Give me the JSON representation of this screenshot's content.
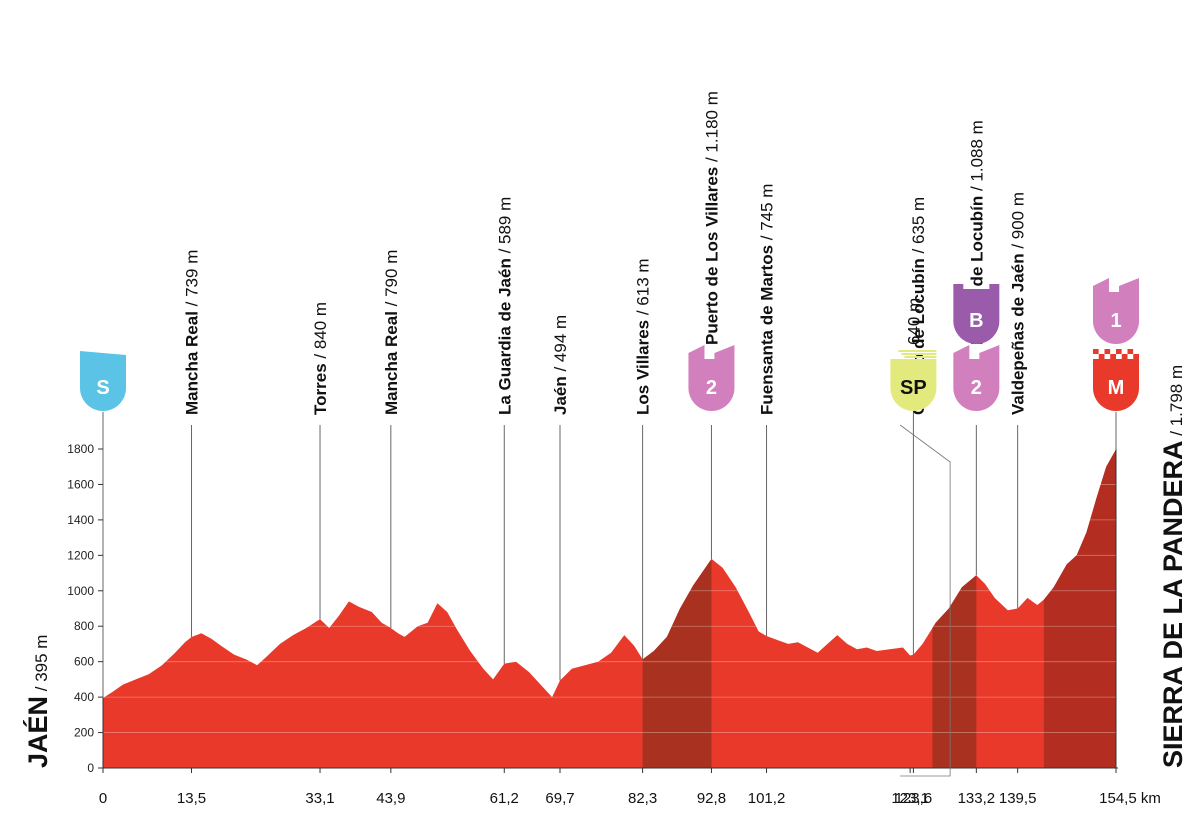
{
  "colors": {
    "profile_main": "#e8392a",
    "profile_climb": "#a8321f",
    "profile_final": "#b32e20",
    "axis": "#333333",
    "start_icon": "#5bc4e6",
    "cat2_icon": "#d27fbd",
    "catB_icon": "#9a5bab",
    "sprint_icon": "#e3ea7d",
    "finish_icon": "#e8392a",
    "cat1_icon": "#d27fbd"
  },
  "start_label": {
    "name": "JAÉN",
    "altitude": " / 395 m"
  },
  "finish_label": {
    "name": "SIERRA DE LA PANDERA",
    "altitude": " / 1.798 m"
  },
  "km_unit": "km",
  "chart_data": {
    "type": "area",
    "title": "",
    "xlabel": "km",
    "ylabel": "",
    "xlim": [
      0,
      154.5
    ],
    "ylim": [
      0,
      1900
    ],
    "yticks": [
      0,
      200,
      400,
      600,
      800,
      1000,
      1200,
      1400,
      1600,
      1800
    ],
    "xticks": [
      {
        "km": 0,
        "label": "0"
      },
      {
        "km": 13.5,
        "label": "13,5"
      },
      {
        "km": 33.1,
        "label": "33,1"
      },
      {
        "km": 43.9,
        "label": "43,9"
      },
      {
        "km": 61.2,
        "label": "61,2"
      },
      {
        "km": 69.7,
        "label": "69,7"
      },
      {
        "km": 82.3,
        "label": "82,3"
      },
      {
        "km": 92.8,
        "label": "92,8"
      },
      {
        "km": 101.2,
        "label": "101,2"
      },
      {
        "km": 123.1,
        "label": "123,1"
      },
      {
        "km": 123.6,
        "label": "123,6"
      },
      {
        "km": 133.2,
        "label": "133,2"
      },
      {
        "km": 139.5,
        "label": "139,5"
      },
      {
        "km": 154.5,
        "label": "154,5 km"
      }
    ],
    "climb_sections": [
      {
        "from": 82.3,
        "to": 92.8
      },
      {
        "from": 126.5,
        "to": 133.2
      },
      {
        "from": 143.5,
        "to": 154.5
      }
    ],
    "profile": [
      [
        0,
        395
      ],
      [
        1.5,
        430
      ],
      [
        3,
        470
      ],
      [
        5,
        500
      ],
      [
        7,
        530
      ],
      [
        9,
        580
      ],
      [
        11,
        650
      ],
      [
        12.5,
        710
      ],
      [
        13.5,
        739
      ],
      [
        15,
        760
      ],
      [
        16.5,
        730
      ],
      [
        18,
        690
      ],
      [
        20,
        640
      ],
      [
        22,
        610
      ],
      [
        23.5,
        580
      ],
      [
        25,
        630
      ],
      [
        27,
        700
      ],
      [
        29,
        750
      ],
      [
        31,
        790
      ],
      [
        33.1,
        840
      ],
      [
        34.5,
        790
      ],
      [
        36,
        860
      ],
      [
        37.5,
        940
      ],
      [
        39,
        910
      ],
      [
        41,
        880
      ],
      [
        42.5,
        820
      ],
      [
        43.9,
        790
      ],
      [
        45,
        760
      ],
      [
        46,
        740
      ],
      [
        48,
        800
      ],
      [
        49.5,
        820
      ],
      [
        51,
        930
      ],
      [
        52.5,
        880
      ],
      [
        54,
        780
      ],
      [
        56,
        660
      ],
      [
        58,
        560
      ],
      [
        59.5,
        500
      ],
      [
        61.2,
        589
      ],
      [
        63,
        600
      ],
      [
        65,
        540
      ],
      [
        67,
        460
      ],
      [
        68.5,
        400
      ],
      [
        69.7,
        494
      ],
      [
        71.5,
        560
      ],
      [
        73.5,
        580
      ],
      [
        75.5,
        600
      ],
      [
        77.5,
        650
      ],
      [
        79.5,
        750
      ],
      [
        81,
        690
      ],
      [
        82.3,
        613
      ],
      [
        84,
        660
      ],
      [
        86,
        740
      ],
      [
        88,
        900
      ],
      [
        90,
        1030
      ],
      [
        92.8,
        1180
      ],
      [
        94.5,
        1130
      ],
      [
        96.5,
        1020
      ],
      [
        98.5,
        880
      ],
      [
        100,
        770
      ],
      [
        101.2,
        745
      ],
      [
        103,
        720
      ],
      [
        104.5,
        700
      ],
      [
        106,
        710
      ],
      [
        107.5,
        680
      ],
      [
        109,
        650
      ],
      [
        110.5,
        700
      ],
      [
        112,
        750
      ],
      [
        113.5,
        700
      ],
      [
        115,
        670
      ],
      [
        116.5,
        680
      ],
      [
        118,
        660
      ],
      [
        120,
        670
      ],
      [
        122,
        680
      ],
      [
        123.1,
        635
      ],
      [
        123.6,
        640
      ],
      [
        125,
        700
      ],
      [
        127,
        820
      ],
      [
        129,
        900
      ],
      [
        131,
        1020
      ],
      [
        133.2,
        1088
      ],
      [
        134.5,
        1040
      ],
      [
        136,
        960
      ],
      [
        138,
        890
      ],
      [
        139.5,
        900
      ],
      [
        141,
        960
      ],
      [
        142.5,
        920
      ],
      [
        143.5,
        950
      ],
      [
        145,
        1020
      ],
      [
        147,
        1150
      ],
      [
        148.5,
        1200
      ],
      [
        150,
        1330
      ],
      [
        151.5,
        1520
      ],
      [
        153,
        1700
      ],
      [
        154.5,
        1798
      ]
    ],
    "points": [
      {
        "km": 13.5,
        "name": "Mancha Real",
        "alt": " / 739 m"
      },
      {
        "km": 33.1,
        "name": "Torres",
        "alt": " / 840 m"
      },
      {
        "km": 43.9,
        "name": "Mancha Real",
        "alt": " / 790 m"
      },
      {
        "km": 61.2,
        "name": "La Guardia de Jaén",
        "alt": " / 589 m"
      },
      {
        "km": 69.7,
        "name": "Jaén",
        "alt": " / 494 m"
      },
      {
        "km": 82.3,
        "name": "Los Villares",
        "alt": " / 613 m"
      },
      {
        "km": 92.8,
        "name": "Puerto de Los Villares",
        "alt": " / 1.180 m"
      },
      {
        "km": 101.2,
        "name": "Fuensanta de Martos",
        "alt": " / 745 m"
      },
      {
        "km": 123.1,
        "name": "Castillo de Locubín",
        "alt": " / 635 m",
        "offset": true
      },
      {
        "km": 123.6,
        "name": "",
        "alt": "640 m"
      },
      {
        "km": 133.2,
        "name": "Puerto de Locubín",
        "alt": " / 1.088 m"
      },
      {
        "km": 139.5,
        "name": "Valdepeñas de Jaén",
        "alt": " / 900 m"
      }
    ],
    "icons": [
      {
        "km": 0,
        "kind": "start",
        "text": "S"
      },
      {
        "km": 92.8,
        "kind": "cat2",
        "text": "2"
      },
      {
        "km": 123.6,
        "kind": "sprint",
        "text": "SP"
      },
      {
        "km": 133.2,
        "kind": "cat2",
        "text": "2"
      },
      {
        "km": 133.2,
        "kind": "catB",
        "text": "B",
        "upper": true
      },
      {
        "km": 154.5,
        "kind": "finish",
        "text": "M"
      },
      {
        "km": 154.5,
        "kind": "cat1",
        "text": "1",
        "upper": true
      }
    ]
  }
}
